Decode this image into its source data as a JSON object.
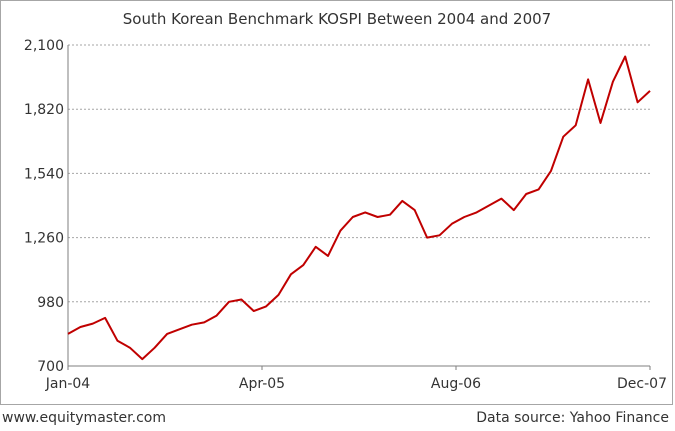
{
  "chart_data": {
    "type": "line",
    "title": "South Korean Benchmark KOSPI Between 2004 and 2007",
    "xlabel": "",
    "ylabel": "",
    "x_tick_labels": [
      "Jan-04",
      "Apr-05",
      "Aug-06",
      "Dec-07"
    ],
    "y_ticks": [
      700,
      980,
      1260,
      1540,
      1820,
      2100
    ],
    "y_tick_labels": [
      "700",
      "980",
      "1,260",
      "1,540",
      "1,820",
      "2,100"
    ],
    "ylim": [
      700,
      2100
    ],
    "xlim": [
      "2004-01",
      "2007-12"
    ],
    "grid": true,
    "series": [
      {
        "color": "#c00000",
        "points": [
          [
            "2004-01",
            840
          ],
          [
            "2004-02",
            870
          ],
          [
            "2004-03",
            885
          ],
          [
            "2004-04",
            910
          ],
          [
            "2004-05",
            810
          ],
          [
            "2004-06",
            780
          ],
          [
            "2004-07",
            730
          ],
          [
            "2004-08",
            780
          ],
          [
            "2004-09",
            840
          ],
          [
            "2004-10",
            860
          ],
          [
            "2004-11",
            880
          ],
          [
            "2004-12",
            890
          ],
          [
            "2005-01",
            920
          ],
          [
            "2005-02",
            980
          ],
          [
            "2005-03",
            990
          ],
          [
            "2005-04",
            940
          ],
          [
            "2005-05",
            960
          ],
          [
            "2005-06",
            1010
          ],
          [
            "2005-07",
            1100
          ],
          [
            "2005-08",
            1140
          ],
          [
            "2005-09",
            1220
          ],
          [
            "2005-10",
            1180
          ],
          [
            "2005-11",
            1290
          ],
          [
            "2005-12",
            1350
          ],
          [
            "2006-01",
            1370
          ],
          [
            "2006-02",
            1350
          ],
          [
            "2006-03",
            1360
          ],
          [
            "2006-04",
            1420
          ],
          [
            "2006-05",
            1380
          ],
          [
            "2006-06",
            1260
          ],
          [
            "2006-07",
            1270
          ],
          [
            "2006-08",
            1320
          ],
          [
            "2006-09",
            1350
          ],
          [
            "2006-10",
            1370
          ],
          [
            "2006-11",
            1400
          ],
          [
            "2006-12",
            1430
          ],
          [
            "2007-01",
            1380
          ],
          [
            "2007-02",
            1450
          ],
          [
            "2007-03",
            1470
          ],
          [
            "2007-04",
            1550
          ],
          [
            "2007-05",
            1700
          ],
          [
            "2007-06",
            1750
          ],
          [
            "2007-07",
            1950
          ],
          [
            "2007-08",
            1760
          ],
          [
            "2007-09",
            1940
          ],
          [
            "2007-10",
            2050
          ],
          [
            "2007-11",
            1850
          ],
          [
            "2007-12",
            1900
          ]
        ]
      }
    ]
  },
  "footer": {
    "left": "www.equitymaster.com",
    "right": "Data source: Yahoo Finance"
  }
}
